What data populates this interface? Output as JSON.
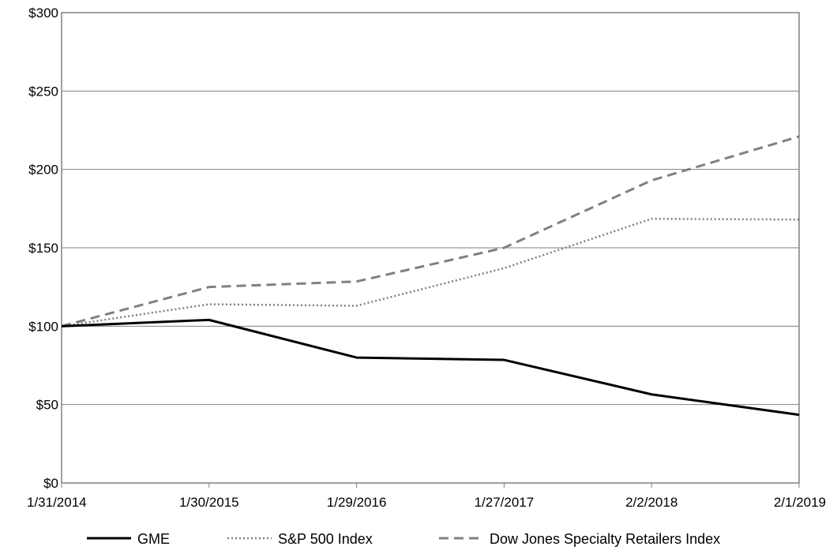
{
  "chart_data": {
    "type": "line",
    "categories": [
      "1/31/2014",
      "1/30/2015",
      "1/29/2016",
      "1/27/2017",
      "2/2/2018",
      "2/1/2019"
    ],
    "y_ticks": [
      "$0",
      "$50",
      "$100",
      "$150",
      "$200",
      "$250",
      "$300"
    ],
    "ylim": [
      0,
      300
    ],
    "grid": true,
    "legend_position": "bottom",
    "series": [
      {
        "name": "GME",
        "values": [
          100,
          104,
          80,
          78.5,
          56.5,
          43.5
        ],
        "color": "#000000",
        "style": "solid"
      },
      {
        "name": "S&P 500 Index",
        "values": [
          100,
          114,
          113,
          137,
          168.5,
          168
        ],
        "color": "#808080",
        "style": "dotted"
      },
      {
        "name": "Dow Jones Specialty Retailers Index",
        "values": [
          100,
          125,
          128.5,
          150,
          193,
          221
        ],
        "color": "#808080",
        "style": "dashed"
      }
    ]
  }
}
